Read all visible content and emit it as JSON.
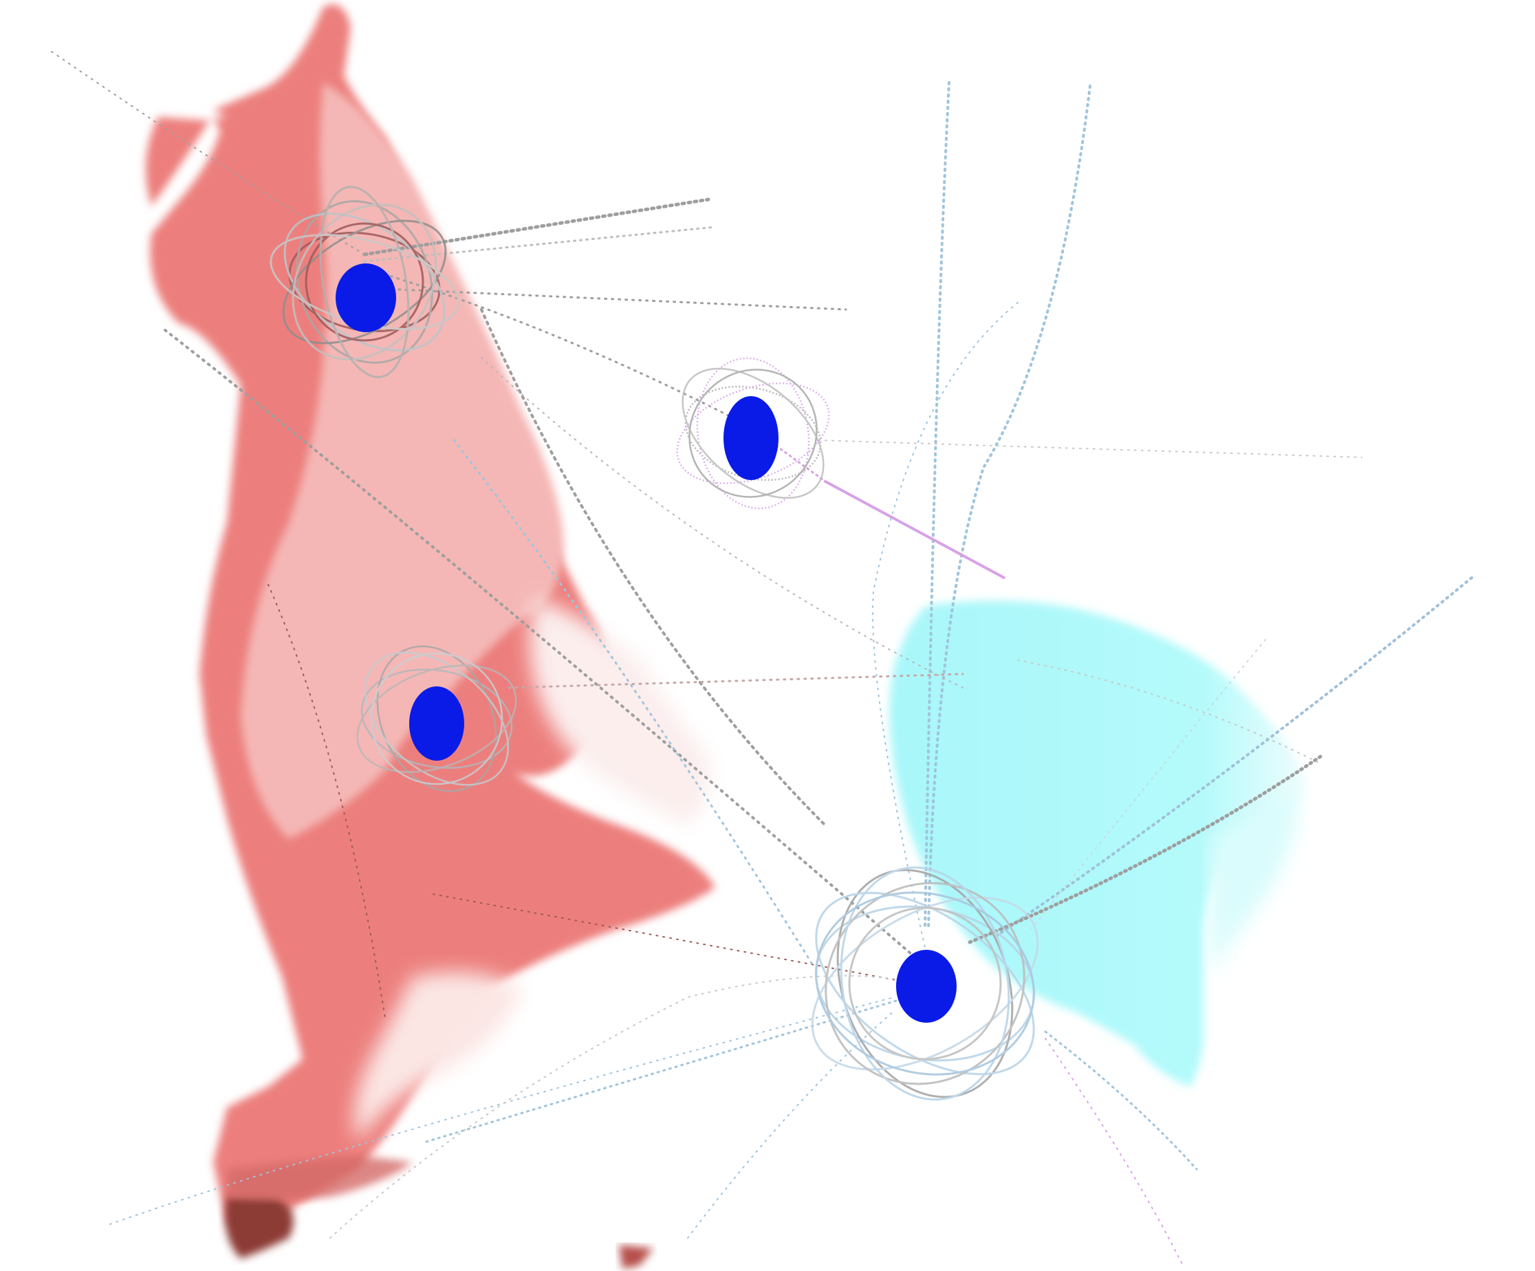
{
  "colors": {
    "background": "#ffffff",
    "red_region_dark": "#ec7f7d",
    "red_region_light": "#f4b7b5",
    "red_region_deep": "#8c3a36",
    "cyan_region": "#a9f7f9",
    "node_fill": "#0a1be8",
    "tangle_gray": "#a7a7a7",
    "tangle_blue": "#b9d4e8",
    "tangle_violet": "#d8a2ea",
    "tangle_dark_red": "#9c5a58",
    "line_gray": "#9e9e9e",
    "line_blue": "#9fc4dc",
    "line_violet": "#d7a1e6"
  },
  "nodes": [
    {
      "name": "node-top-left",
      "tangle_tint": "dark-red"
    },
    {
      "name": "node-upper-middle",
      "tangle_tint": "violet"
    },
    {
      "name": "node-middle-left",
      "tangle_tint": "gray"
    },
    {
      "name": "node-bottom-right",
      "tangle_tint": "blue"
    }
  ]
}
